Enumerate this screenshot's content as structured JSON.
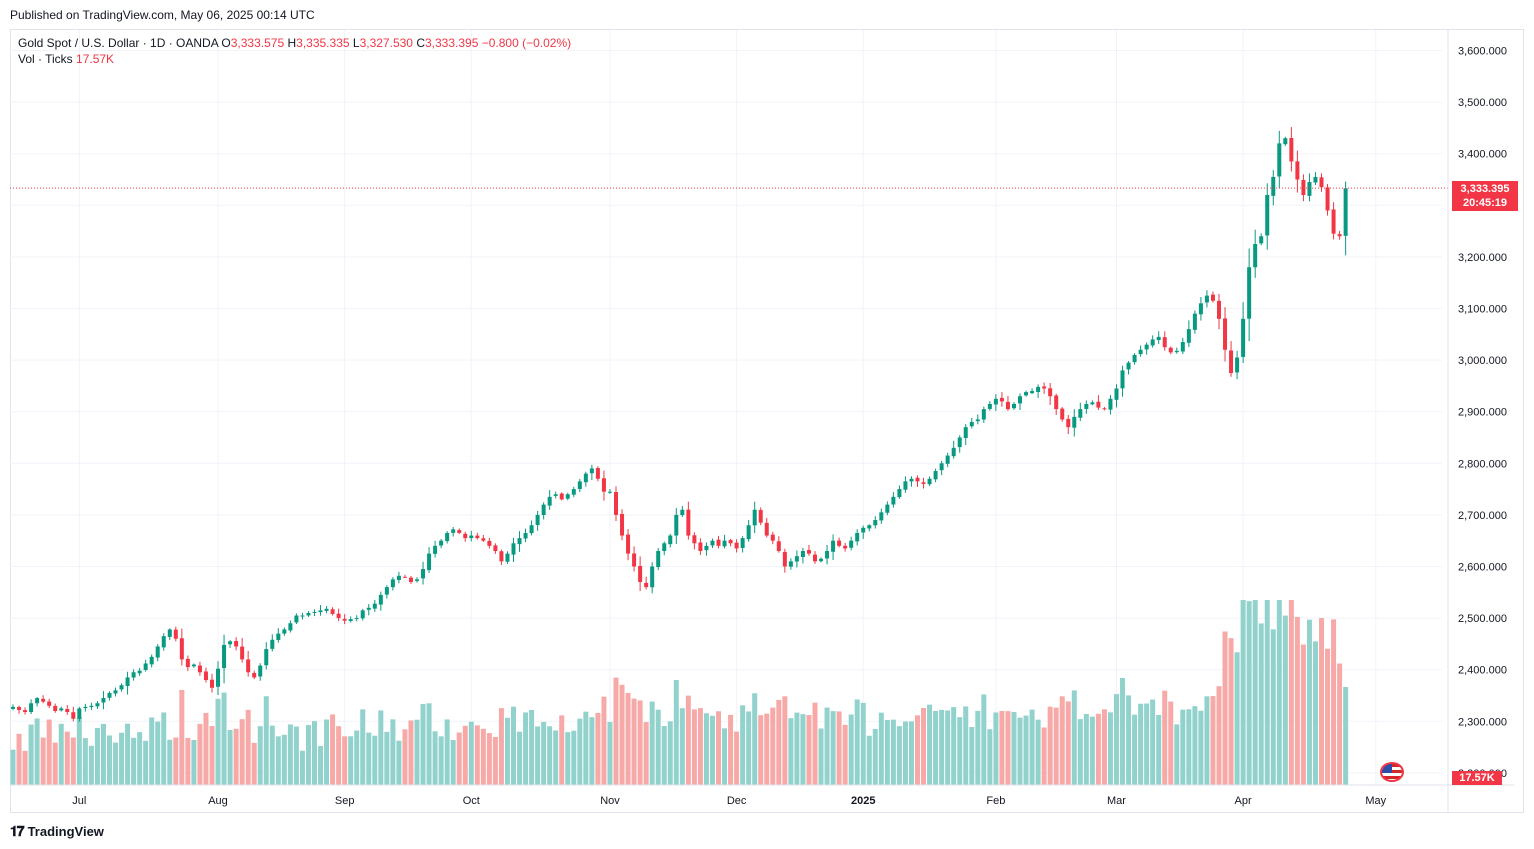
{
  "header": {
    "published": "Published on TradingView.com, May 06, 2025 00:14 UTC"
  },
  "legend": {
    "symbol": "Gold Spot / U.S. Dollar · 1D · OANDA",
    "o_label": "O",
    "o_value": "3,333.575",
    "h_label": "H",
    "h_value": "3,335.335",
    "l_label": "L",
    "l_value": "3,327.530",
    "c_label": "C",
    "c_value": "3,333.395",
    "change": "−0.800 (−0.02%)",
    "vol_label": "Vol · Ticks",
    "vol_value": "17.57K"
  },
  "price_tag": {
    "price": "3,333.395",
    "countdown": "20:45:19"
  },
  "volume_tag": "17.57K",
  "footer": {
    "brand": "TradingView",
    "logo_icon": "tradingview-logo-icon"
  },
  "colors": {
    "up": "#089981",
    "down": "#f23645",
    "vol_up": "#92d2cc",
    "vol_down": "#f7a9a7"
  },
  "chart_data": {
    "type": "candlestick",
    "title": "Gold Spot / U.S. Dollar · 1D · OANDA",
    "ylim": [
      2180,
      3650
    ],
    "y_ticks": [
      "3,600.000",
      "3,500.000",
      "3,400.000",
      "3,300.000",
      "3,200.000",
      "3,100.000",
      "3,000.000",
      "2,900.000",
      "2,800.000",
      "2,700.000",
      "2,600.000",
      "2,500.000",
      "2,400.000",
      "2,300.000",
      "2,200.000"
    ],
    "y_tick_values": [
      3600,
      3500,
      3400,
      3300,
      3200,
      3100,
      3000,
      2900,
      2800,
      2700,
      2600,
      2500,
      2400,
      2300,
      2200
    ],
    "x_labels": [
      {
        "label": "Jul",
        "index": 11
      },
      {
        "label": "Aug",
        "index": 34
      },
      {
        "label": "Sep",
        "index": 55
      },
      {
        "label": "Oct",
        "index": 76
      },
      {
        "label": "Nov",
        "index": 99
      },
      {
        "label": "Dec",
        "index": 120
      },
      {
        "label": "2025",
        "index": 141
      },
      {
        "label": "Feb",
        "index": 163
      },
      {
        "label": "Mar",
        "index": 183
      },
      {
        "label": "Apr",
        "index": 204
      },
      {
        "label": "May",
        "index": 226
      }
    ],
    "grid": true,
    "last_price": 3333.395,
    "closes": [
      2328,
      2322,
      2318,
      2335,
      2345,
      2338,
      2330,
      2320,
      2325,
      2318,
      2305,
      2325,
      2328,
      2330,
      2335,
      2345,
      2355,
      2360,
      2370,
      2385,
      2395,
      2398,
      2412,
      2425,
      2445,
      2465,
      2478,
      2460,
      2420,
      2405,
      2410,
      2395,
      2380,
      2365,
      2402,
      2448,
      2455,
      2445,
      2420,
      2395,
      2385,
      2408,
      2440,
      2458,
      2470,
      2478,
      2490,
      2505,
      2505,
      2510,
      2512,
      2515,
      2518,
      2508,
      2500,
      2495,
      2498,
      2500,
      2515,
      2520,
      2528,
      2545,
      2560,
      2575,
      2582,
      2580,
      2570,
      2575,
      2595,
      2625,
      2640,
      2650,
      2665,
      2672,
      2665,
      2655,
      2660,
      2655,
      2650,
      2640,
      2630,
      2610,
      2625,
      2645,
      2655,
      2665,
      2680,
      2700,
      2720,
      2735,
      2740,
      2730,
      2740,
      2750,
      2765,
      2780,
      2790,
      2770,
      2745,
      2745,
      2700,
      2660,
      2625,
      2600,
      2570,
      2560,
      2600,
      2630,
      2645,
      2660,
      2700,
      2710,
      2660,
      2645,
      2630,
      2640,
      2650,
      2640,
      2650,
      2645,
      2635,
      2655,
      2680,
      2710,
      2685,
      2660,
      2650,
      2630,
      2600,
      2610,
      2620,
      2630,
      2625,
      2610,
      2615,
      2630,
      2650,
      2640,
      2635,
      2650,
      2665,
      2675,
      2680,
      2690,
      2705,
      2720,
      2735,
      2750,
      2765,
      2770,
      2765,
      2760,
      2770,
      2785,
      2800,
      2815,
      2830,
      2850,
      2870,
      2880,
      2885,
      2905,
      2915,
      2925,
      2920,
      2905,
      2915,
      2930,
      2938,
      2940,
      2948,
      2945,
      2930,
      2905,
      2885,
      2870,
      2890,
      2905,
      2915,
      2918,
      2908,
      2905,
      2925,
      2945,
      2980,
      2995,
      3010,
      3020,
      3030,
      3040,
      3045,
      3025,
      3015,
      3018,
      3035,
      3060,
      3090,
      3110,
      3125,
      3115,
      3080,
      3020,
      2975,
      3005,
      3080,
      3180,
      3225,
      3240,
      3320,
      3355,
      3420,
      3430,
      3385,
      3350,
      3320,
      3345,
      3355,
      3335,
      3290,
      3245,
      3240,
      3333
    ]
  }
}
